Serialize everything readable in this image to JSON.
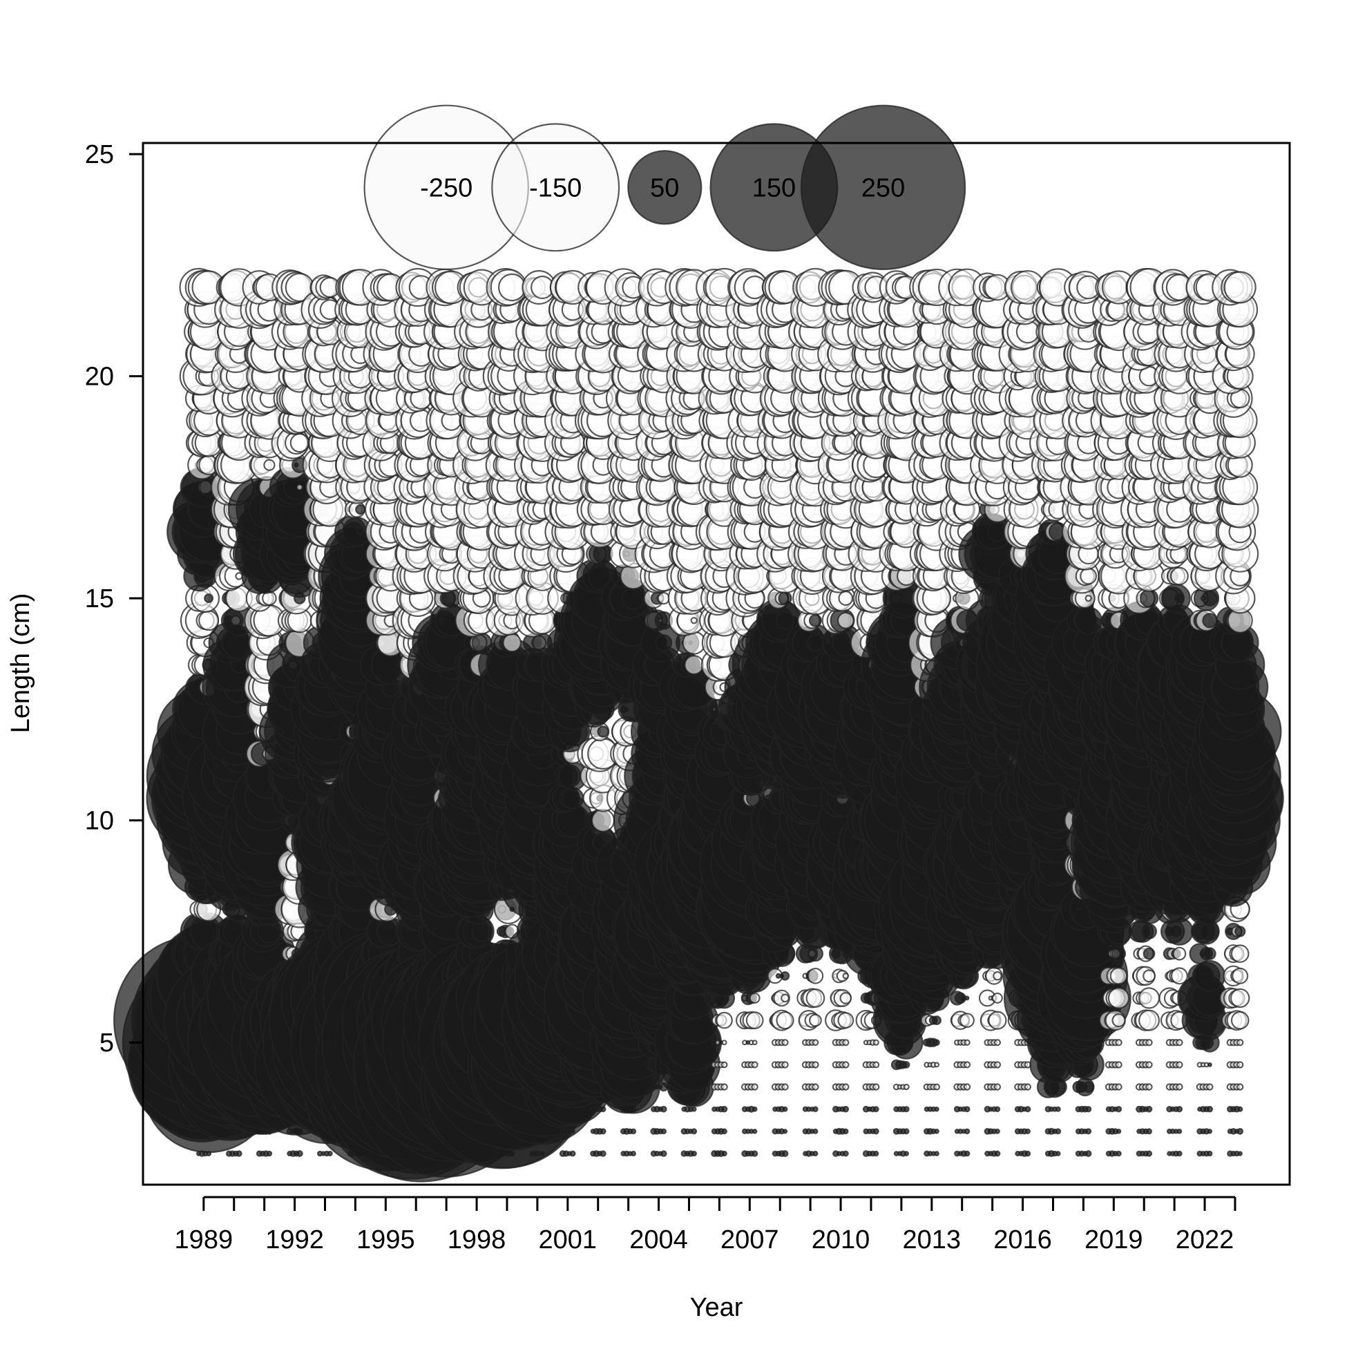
{
  "chart_data": {
    "type": "bubble",
    "title": "",
    "xlabel": "Year",
    "ylabel": "Length (cm)",
    "xlim": [
      1987.0,
      2024.8
    ],
    "ylim": [
      1.8,
      25.25
    ],
    "x_ticks": [
      1989,
      1990,
      1991,
      1992,
      1993,
      1994,
      1995,
      1996,
      1997,
      1998,
      1999,
      2000,
      2001,
      2002,
      2003,
      2004,
      2005,
      2006,
      2007,
      2008,
      2009,
      2010,
      2011,
      2012,
      2013,
      2014,
      2015,
      2016,
      2017,
      2018,
      2019,
      2020,
      2021,
      2022,
      2023
    ],
    "x_tick_labels": [
      "1989",
      "1992",
      "1995",
      "1998",
      "2001",
      "2004",
      "2007",
      "2010",
      "2013",
      "2016",
      "2019",
      "2022"
    ],
    "y_ticks": [
      5,
      10,
      15,
      20,
      25
    ],
    "y_tick_labels": [
      "5",
      "10",
      "15",
      "20",
      "25"
    ],
    "grid": false,
    "negative_fill": "#ffffff",
    "positive_fill": "#1a1a1a",
    "legend": {
      "placement": "top",
      "y": 24.25,
      "entries": [
        {
          "label": "-250",
          "value": -250,
          "x": 1997.0
        },
        {
          "label": "-150",
          "value": -150,
          "x": 2000.6
        },
        {
          "label": "50",
          "value": 50,
          "x": 2004.2
        },
        {
          "label": "150",
          "value": 150,
          "x": 2007.8
        },
        {
          "label": "250",
          "value": 250,
          "x": 2011.4
        }
      ]
    },
    "lengths": [
      2.5,
      3,
      3.5,
      4,
      4.5,
      5,
      5.5,
      6,
      6.5,
      7,
      7.5,
      8,
      8.5,
      9,
      9.5,
      10,
      10.5,
      11,
      11.5,
      12,
      12.5,
      13,
      13.5,
      14,
      14.5,
      15,
      15.5,
      16,
      16.5,
      17,
      17.5,
      18,
      18.5,
      19,
      19.5,
      20,
      20.5,
      21,
      21.5,
      22
    ],
    "year_modes": [
      {
        "year": 1989,
        "modes": [
          [
            5,
            1.0,
            240
          ],
          [
            10.8,
            1.2,
            90
          ],
          [
            16.5,
            0.7,
            40
          ]
        ]
      },
      {
        "year": 1990,
        "modes": [
          [
            5,
            1.0,
            140
          ],
          [
            10,
            1.0,
            70
          ],
          [
            12.5,
            1.5,
            30
          ]
        ]
      },
      {
        "year": 1991,
        "modes": [
          [
            5,
            1.0,
            160
          ],
          [
            9.5,
            1.0,
            60
          ],
          [
            16.5,
            0.7,
            40
          ]
        ]
      },
      {
        "year": 1992,
        "modes": [
          [
            4.8,
            0.8,
            110
          ],
          [
            12,
            1.2,
            40
          ],
          [
            16.5,
            0.7,
            50
          ]
        ]
      },
      {
        "year": 1993,
        "modes": [
          [
            5,
            1.0,
            150
          ],
          [
            9,
            1.0,
            40
          ],
          [
            12.5,
            1.0,
            40
          ]
        ]
      },
      {
        "year": 1994,
        "modes": [
          [
            5,
            1.0,
            250
          ],
          [
            9.5,
            1.0,
            40
          ],
          [
            14.5,
            1.2,
            60
          ]
        ]
      },
      {
        "year": 1995,
        "modes": [
          [
            4.8,
            1.0,
            280
          ],
          [
            10.2,
            1.0,
            60
          ],
          [
            12,
            1.2,
            30
          ]
        ]
      },
      {
        "year": 1996,
        "modes": [
          [
            4.5,
            1.0,
            300
          ],
          [
            9,
            1.0,
            40
          ],
          [
            11.5,
            1.0,
            30
          ]
        ]
      },
      {
        "year": 1997,
        "modes": [
          [
            4.5,
            1.0,
            260
          ],
          [
            8.5,
            1.0,
            40
          ],
          [
            13,
            1.0,
            50
          ]
        ]
      },
      {
        "year": 1998,
        "modes": [
          [
            4.5,
            1.0,
            280
          ],
          [
            9.5,
            1.0,
            50
          ],
          [
            12,
            1.2,
            30
          ]
        ]
      },
      {
        "year": 1999,
        "modes": [
          [
            4.5,
            1.0,
            220
          ],
          [
            10,
            1.0,
            40
          ],
          [
            12.5,
            1.0,
            40
          ]
        ]
      },
      {
        "year": 2000,
        "modes": [
          [
            5,
            1.0,
            160
          ],
          [
            9.5,
            1.0,
            50
          ],
          [
            12,
            1.2,
            30
          ]
        ]
      },
      {
        "year": 2001,
        "modes": [
          [
            5.5,
            1.0,
            140
          ],
          [
            9,
            1.0,
            40
          ],
          [
            13,
            1.0,
            30
          ]
        ]
      },
      {
        "year": 2002,
        "modes": [
          [
            6,
            1.0,
            90
          ],
          [
            8.5,
            1.0,
            30
          ],
          [
            14,
            1.0,
            50
          ]
        ]
      },
      {
        "year": 2003,
        "modes": [
          [
            5.5,
            1.0,
            60
          ],
          [
            8,
            1.0,
            40
          ],
          [
            14,
            1.0,
            30
          ]
        ]
      },
      {
        "year": 2004,
        "modes": [
          [
            7,
            1.0,
            60
          ],
          [
            10,
            1.0,
            50
          ],
          [
            13,
            1.0,
            30
          ]
        ]
      },
      {
        "year": 2005,
        "modes": [
          [
            5,
            0.8,
            30
          ],
          [
            8.5,
            1.0,
            90
          ],
          [
            12,
            1.2,
            30
          ]
        ]
      },
      {
        "year": 2006,
        "modes": [
          [
            8.5,
            1.0,
            110
          ],
          [
            11,
            1.0,
            30
          ]
        ]
      },
      {
        "year": 2007,
        "modes": [
          [
            8.5,
            1.0,
            90
          ],
          [
            12,
            1.0,
            30
          ]
        ]
      },
      {
        "year": 2008,
        "modes": [
          [
            9,
            1.0,
            50
          ],
          [
            13,
            1.0,
            60
          ]
        ]
      },
      {
        "year": 2009,
        "modes": [
          [
            9.5,
            1.2,
            40
          ],
          [
            12.5,
            1.0,
            50
          ]
        ]
      },
      {
        "year": 2010,
        "modes": [
          [
            9,
            1.0,
            40
          ],
          [
            12.5,
            1.0,
            50
          ]
        ]
      },
      {
        "year": 2011,
        "modes": [
          [
            8.5,
            1.0,
            60
          ],
          [
            12,
            1.0,
            40
          ]
        ]
      },
      {
        "year": 2012,
        "modes": [
          [
            6,
            0.6,
            30
          ],
          [
            9.5,
            1.2,
            60
          ],
          [
            13.5,
            1.0,
            50
          ]
        ]
      },
      {
        "year": 2013,
        "modes": [
          [
            8,
            1.0,
            70
          ],
          [
            11,
            1.0,
            40
          ]
        ]
      },
      {
        "year": 2014,
        "modes": [
          [
            8.5,
            1.0,
            50
          ],
          [
            12.5,
            1.2,
            50
          ]
        ]
      },
      {
        "year": 2015,
        "modes": [
          [
            9,
            1.0,
            60
          ],
          [
            13,
            1.2,
            40
          ],
          [
            16,
            0.5,
            30
          ]
        ]
      },
      {
        "year": 2016,
        "modes": [
          [
            9.5,
            1.0,
            40
          ],
          [
            13.5,
            1.2,
            60
          ]
        ]
      },
      {
        "year": 2017,
        "modes": [
          [
            7,
            1.2,
            80
          ],
          [
            11,
            1.0,
            40
          ],
          [
            14.5,
            1.2,
            50
          ]
        ]
      },
      {
        "year": 2018,
        "modes": [
          [
            6.5,
            1.0,
            60
          ],
          [
            12.5,
            1.2,
            60
          ]
        ]
      },
      {
        "year": 2019,
        "modes": [
          [
            9.5,
            1.0,
            60
          ],
          [
            12.5,
            1.2,
            40
          ]
        ]
      },
      {
        "year": 2020,
        "modes": [
          [
            9.5,
            1.0,
            40
          ],
          [
            12.5,
            1.2,
            60
          ]
        ]
      },
      {
        "year": 2021,
        "modes": [
          [
            9.5,
            1.0,
            50
          ],
          [
            13,
            1.2,
            50
          ]
        ]
      },
      {
        "year": 2022,
        "modes": [
          [
            9.5,
            1.0,
            60
          ],
          [
            12.5,
            1.2,
            60
          ],
          [
            6,
            0.5,
            20
          ]
        ]
      },
      {
        "year": 2023,
        "modes": [
          [
            10.5,
            1.2,
            70
          ],
          [
            13,
            1.0,
            30
          ]
        ]
      }
    ]
  }
}
